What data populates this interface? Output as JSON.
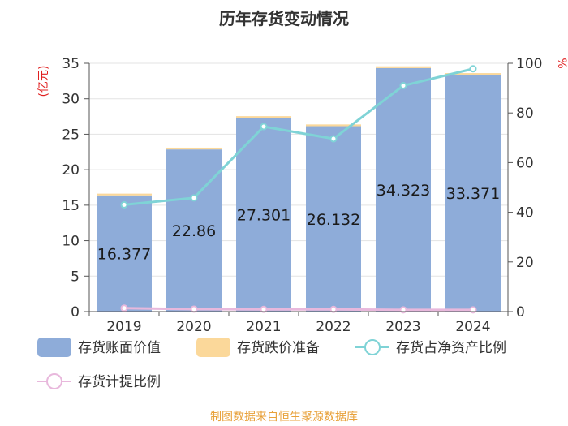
{
  "chart_data": {
    "type": "bar",
    "title": "历年存货变动情况",
    "categories": [
      "2019",
      "2020",
      "2021",
      "2022",
      "2023",
      "2024"
    ],
    "y_left": {
      "unit": "亿元",
      "ticks": [
        0,
        5,
        10,
        15,
        20,
        25,
        30,
        35
      ],
      "lim": [
        0,
        35
      ]
    },
    "y_right": {
      "unit": "%",
      "ticks": [
        0,
        20,
        40,
        60,
        80,
        100
      ],
      "lim": [
        0,
        100
      ]
    },
    "series": [
      {
        "name": "存货账面价值",
        "kind": "bar",
        "axis": "left",
        "color": "#8eacd9",
        "values": [
          16.377,
          22.86,
          27.301,
          26.132,
          34.323,
          33.371
        ],
        "labels": [
          "16.377",
          "22.86",
          "27.301",
          "26.132",
          "34.323",
          "33.371"
        ]
      },
      {
        "name": "存货跌价准备",
        "kind": "bar",
        "axis": "left",
        "stacked": true,
        "color": "#fbd89a",
        "values": [
          0.25,
          0.25,
          0.25,
          0.25,
          0.25,
          0.25
        ]
      },
      {
        "name": "存货占净资产比例",
        "kind": "line",
        "axis": "right",
        "color": "#7fd3d6",
        "values": [
          43,
          45.8,
          74.5,
          69.6,
          91,
          97.8
        ]
      },
      {
        "name": "存货计提比例",
        "kind": "line",
        "axis": "right",
        "color": "#e8b8dc",
        "values": [
          1.4,
          1.0,
          0.9,
          0.9,
          0.7,
          0.7
        ]
      }
    ],
    "grid": true,
    "legend_position": "bottom"
  },
  "footer": {
    "source": "制图数据来自恒生聚源数据库"
  }
}
